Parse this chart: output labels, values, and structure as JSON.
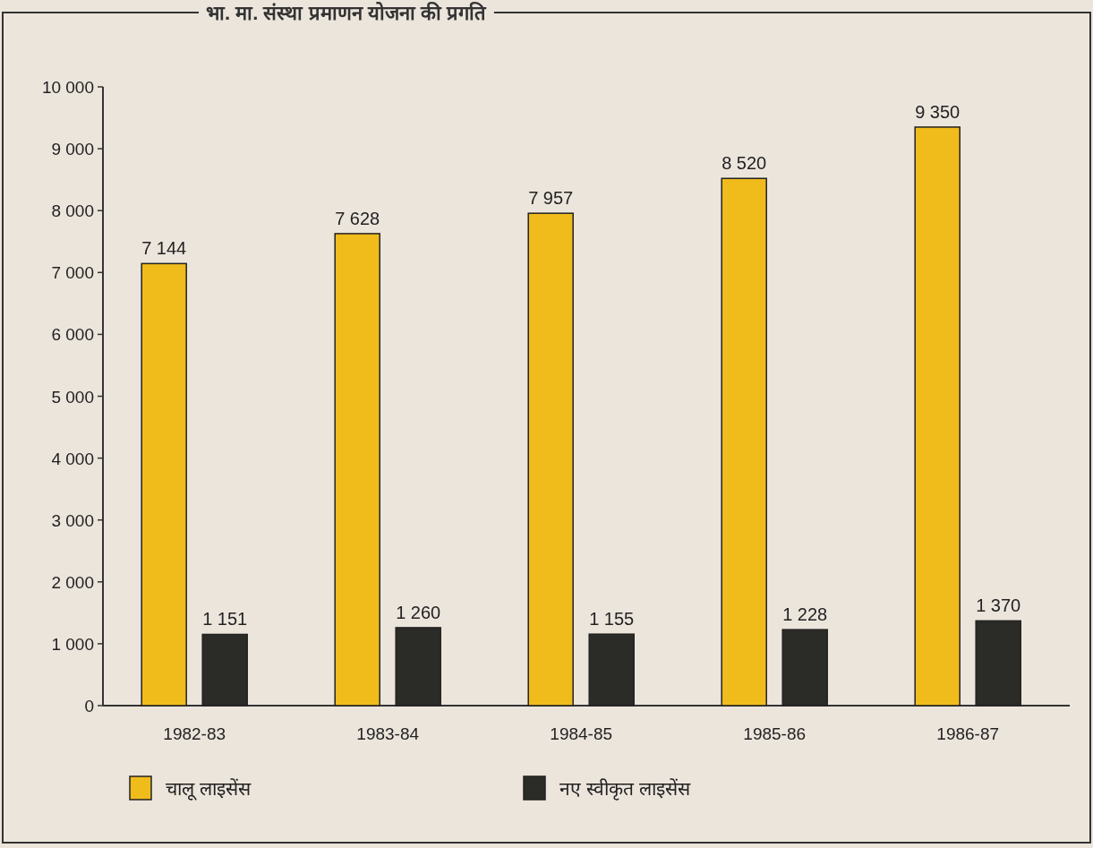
{
  "chart_data": {
    "type": "bar",
    "title": "भा. मा. संस्था प्रमाणन योजना की प्रगति",
    "categories": [
      "1982-83",
      "1983-84",
      "1984-85",
      "1985-86",
      "1986-87"
    ],
    "series": [
      {
        "name": "चालू लाइसेंस",
        "color": "#f0bc1c",
        "values": [
          7144,
          7628,
          7957,
          8520,
          9350
        ],
        "value_labels": [
          "7 144",
          "7 628",
          "7 957",
          "8 520",
          "9 350"
        ]
      },
      {
        "name": "नए स्वीकृत लाइसेंस",
        "color": "#2b2b27",
        "values": [
          1151,
          1260,
          1155,
          1228,
          1370
        ],
        "value_labels": [
          "1 151",
          "1 260",
          "1 155",
          "1 228",
          "1 370"
        ]
      }
    ],
    "ylim": [
      0,
      10000
    ],
    "yticks": [
      0,
      {
        "value": 1000,
        "label": "1 000"
      },
      {
        "value": 2000,
        "label": "2 000"
      },
      {
        "value": 3000,
        "label": "3 000"
      },
      {
        "value": 4000,
        "label": "4 000"
      },
      {
        "value": 5000,
        "label": "5 000"
      },
      {
        "value": 6000,
        "label": "6 000"
      },
      {
        "value": 7000,
        "label": "7 000"
      },
      {
        "value": 8000,
        "label": "8 000"
      },
      {
        "value": 9000,
        "label": "9 000"
      },
      {
        "value": 10000,
        "label": "10 000"
      }
    ],
    "grid": false,
    "legend": "bottom"
  }
}
